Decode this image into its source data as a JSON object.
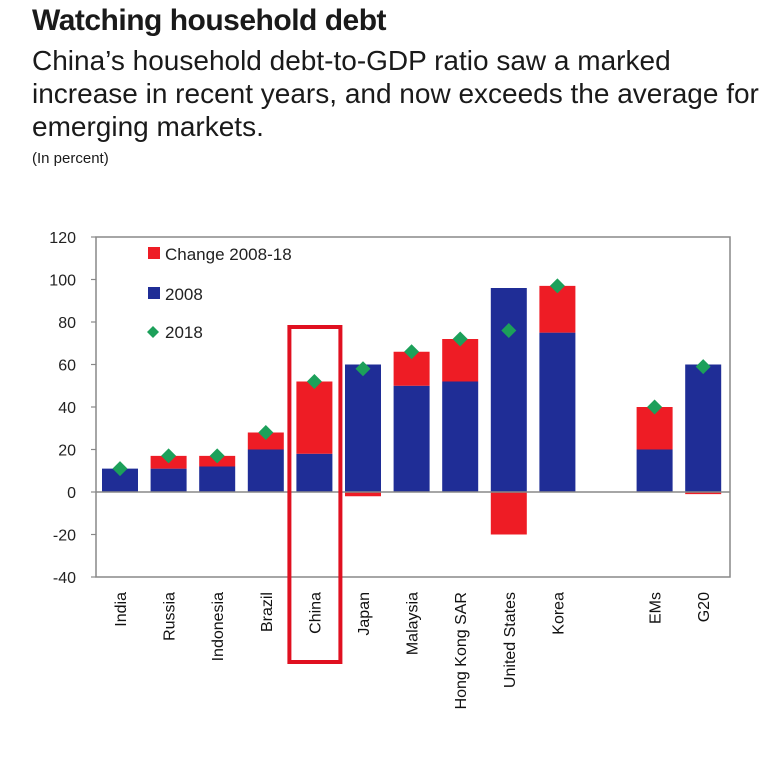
{
  "header": {
    "title": "Watching household debt",
    "subtitle": "China’s household debt-to-GDP ratio saw a marked increase in recent years, and now exceeds the average for emerging markets.",
    "unit": "(In percent)"
  },
  "colors": {
    "change": "#ee1c25",
    "base2008": "#1f2d96",
    "marker2018": "#1ca05a",
    "highlight": "#e01020",
    "axis": "#888888"
  },
  "chart_data": {
    "type": "bar",
    "stacked": true,
    "categories": [
      "India",
      "Russia",
      "Indonesia",
      "Brazil",
      "China",
      "Japan",
      "Malaysia",
      "Hong Kong SAR",
      "United States",
      "Korea",
      "EMs",
      "G20"
    ],
    "series": [
      {
        "name": "2008",
        "kind": "bar",
        "values": [
          11,
          11,
          12,
          20,
          18,
          60,
          50,
          52,
          96,
          75,
          20,
          60
        ]
      },
      {
        "name": "Change 2008-18",
        "kind": "bar",
        "values": [
          0,
          6,
          5,
          8,
          34,
          -2,
          16,
          20,
          -20,
          22,
          20,
          -1
        ]
      },
      {
        "name": "2018",
        "kind": "marker",
        "values": [
          11,
          17,
          17,
          28,
          52,
          58,
          66,
          72,
          76,
          97,
          40,
          59
        ]
      }
    ],
    "legend": [
      "Change 2008-18",
      "2008",
      "2018"
    ],
    "legend_position": "top-left",
    "highlight_category": "China",
    "ylim": [
      -40,
      120
    ],
    "yticks": [
      -40,
      -20,
      0,
      20,
      40,
      60,
      80,
      100,
      120
    ],
    "xlabel": "",
    "ylabel": "",
    "grid": false
  }
}
